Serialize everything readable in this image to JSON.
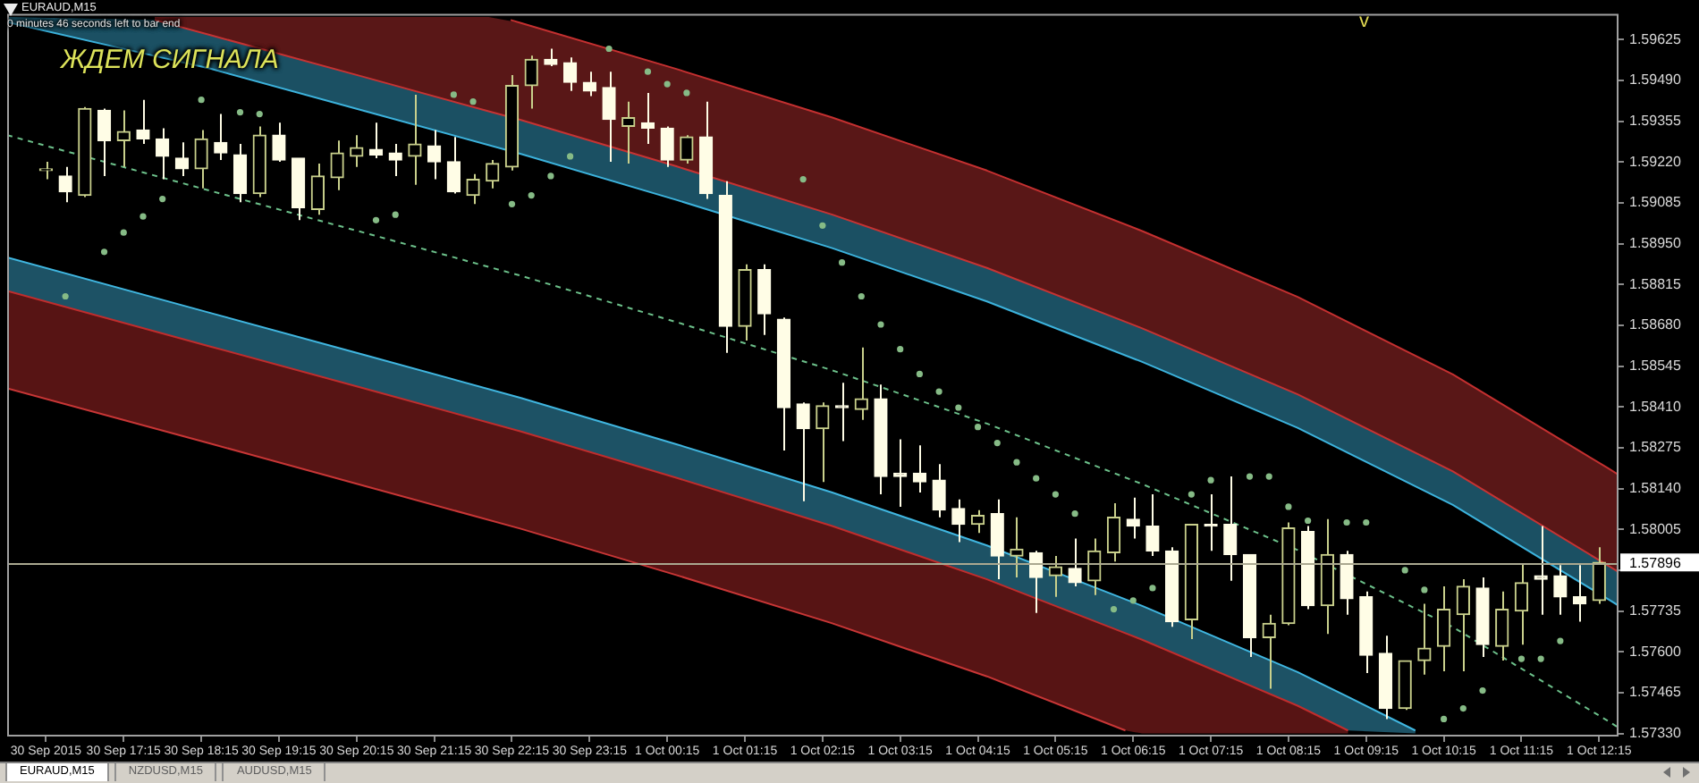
{
  "chart_data": {
    "type": "candlestick",
    "title": "EURAUD,M15",
    "x": [
      "2015-09-30T16:15",
      "2015-09-30T16:30",
      "2015-09-30T16:45",
      "2015-09-30T17:00",
      "2015-09-30T17:15",
      "2015-09-30T17:30",
      "2015-09-30T17:45",
      "2015-09-30T18:00",
      "2015-09-30T18:15",
      "2015-09-30T18:30",
      "2015-09-30T18:45",
      "2015-09-30T19:00",
      "2015-09-30T19:15",
      "2015-09-30T19:30",
      "2015-09-30T19:45",
      "2015-09-30T20:00",
      "2015-09-30T20:15",
      "2015-09-30T20:30",
      "2015-09-30T20:45",
      "2015-09-30T21:00",
      "2015-09-30T21:15",
      "2015-09-30T21:30",
      "2015-09-30T21:45",
      "2015-09-30T22:00",
      "2015-09-30T22:15",
      "2015-09-30T22:30",
      "2015-09-30T22:45",
      "2015-09-30T23:00",
      "2015-09-30T23:15",
      "2015-09-30T23:30",
      "2015-09-30T23:45",
      "2015-10-01T00:00",
      "2015-10-01T00:15",
      "2015-10-01T00:30",
      "2015-10-01T00:45",
      "2015-10-01T01:00",
      "2015-10-01T01:15",
      "2015-10-01T01:30",
      "2015-10-01T01:45",
      "2015-10-01T02:00",
      "2015-10-01T02:15",
      "2015-10-01T02:30",
      "2015-10-01T02:45",
      "2015-10-01T03:00",
      "2015-10-01T03:15",
      "2015-10-01T03:30",
      "2015-10-01T03:45",
      "2015-10-01T04:00",
      "2015-10-01T04:15",
      "2015-10-01T04:30",
      "2015-10-01T04:45",
      "2015-10-01T05:00",
      "2015-10-01T05:15",
      "2015-10-01T05:30",
      "2015-10-01T05:45",
      "2015-10-01T06:00",
      "2015-10-01T06:15",
      "2015-10-01T06:30",
      "2015-10-01T06:45",
      "2015-10-01T07:00",
      "2015-10-01T07:15",
      "2015-10-01T07:30",
      "2015-10-01T07:45",
      "2015-10-01T08:00",
      "2015-10-01T08:15",
      "2015-10-01T08:30",
      "2015-10-01T08:45",
      "2015-10-01T09:00",
      "2015-10-01T09:15",
      "2015-10-01T09:30",
      "2015-10-01T09:45",
      "2015-10-01T10:00",
      "2015-10-01T10:15",
      "2015-10-01T10:30",
      "2015-10-01T10:45",
      "2015-10-01T11:00",
      "2015-10-01T11:15",
      "2015-10-01T11:30",
      "2015-10-01T11:45",
      "2015-10-01T12:00",
      "2015-10-01T12:15"
    ],
    "ohlc": [
      [
        1.59192,
        1.59221,
        1.59163,
        1.59192
      ],
      [
        1.59174,
        1.59204,
        1.59087,
        1.59122
      ],
      [
        1.5911,
        1.59402,
        1.59104,
        1.59397
      ],
      [
        1.59391,
        1.59397,
        1.59174,
        1.59291
      ],
      [
        1.59291,
        1.59391,
        1.59204,
        1.59321
      ],
      [
        1.59326,
        1.59426,
        1.5928,
        1.59297
      ],
      [
        1.59297,
        1.59332,
        1.59163,
        1.59239
      ],
      [
        1.59233,
        1.59285,
        1.59174,
        1.59198
      ],
      [
        1.59198,
        1.59326,
        1.59133,
        1.59297
      ],
      [
        1.59285,
        1.59379,
        1.59227,
        1.5925
      ],
      [
        1.59244,
        1.5928,
        1.59087,
        1.59116
      ],
      [
        1.59116,
        1.59338,
        1.59104,
        1.59309
      ],
      [
        1.59309,
        1.5935,
        1.59221,
        1.59227
      ],
      [
        1.59233,
        1.59233,
        1.59028,
        1.59069
      ],
      [
        1.59063,
        1.59215,
        1.59046,
        1.59174
      ],
      [
        1.59168,
        1.59291,
        1.59127,
        1.5925
      ],
      [
        1.59239,
        1.59309,
        1.59204,
        1.59268
      ],
      [
        1.59262,
        1.5935,
        1.59233,
        1.59244
      ],
      [
        1.5925,
        1.5928,
        1.59174,
        1.59227
      ],
      [
        1.59239,
        1.59443,
        1.59145,
        1.5928
      ],
      [
        1.59274,
        1.59326,
        1.59163,
        1.59221
      ],
      [
        1.59221,
        1.59303,
        1.59116,
        1.59122
      ],
      [
        1.5911,
        1.5918,
        1.59081,
        1.59163
      ],
      [
        1.59157,
        1.59227,
        1.59133,
        1.59215
      ],
      [
        1.59204,
        1.59508,
        1.59192,
        1.59473
      ],
      [
        1.59473,
        1.59572,
        1.59397,
        1.5956
      ],
      [
        1.5956,
        1.59595,
        1.59537,
        1.59543
      ],
      [
        1.59549,
        1.59566,
        1.59455,
        1.59484
      ],
      [
        1.59484,
        1.59519,
        1.59438,
        1.59455
      ],
      [
        1.59467,
        1.59519,
        1.59221,
        1.59361
      ],
      [
        1.59338,
        1.5942,
        1.59215,
        1.59367
      ],
      [
        1.5935,
        1.59449,
        1.5928,
        1.59332
      ],
      [
        1.59332,
        1.59338,
        1.59204,
        1.59227
      ],
      [
        1.59227,
        1.59309,
        1.59215,
        1.59303
      ],
      [
        1.59303,
        1.5942,
        1.59098,
        1.59116
      ],
      [
        1.5911,
        1.59157,
        1.58589,
        1.58677
      ],
      [
        1.58677,
        1.58882,
        1.5863,
        1.58864
      ],
      [
        1.58864,
        1.58882,
        1.58648,
        1.58718
      ],
      [
        1.587,
        1.58706,
        1.58266,
        1.58408
      ],
      [
        1.5842,
        1.58425,
        1.58098,
        1.58338
      ],
      [
        1.58338,
        1.58425,
        1.58162,
        1.58414
      ],
      [
        1.58414,
        1.5849,
        1.58297,
        1.58408
      ],
      [
        1.58402,
        1.58607,
        1.58367,
        1.58437
      ],
      [
        1.58437,
        1.58484,
        1.58121,
        1.5818
      ],
      [
        1.58191,
        1.58303,
        1.5808,
        1.5818
      ],
      [
        1.58191,
        1.58283,
        1.58127,
        1.58162
      ],
      [
        1.58168,
        1.58221,
        1.58045,
        1.58069
      ],
      [
        1.58074,
        1.58104,
        1.57963,
        1.58022
      ],
      [
        1.58022,
        1.58069,
        1.57993,
        1.58051
      ],
      [
        1.58057,
        1.58104,
        1.5784,
        1.57917
      ],
      [
        1.57917,
        1.58045,
        1.57846,
        1.5794
      ],
      [
        1.57928,
        1.57934,
        1.57729,
        1.57846
      ],
      [
        1.57852,
        1.57917,
        1.57782,
        1.57881
      ],
      [
        1.57876,
        1.57975,
        1.57817,
        1.57829
      ],
      [
        1.57835,
        1.57975,
        1.57788,
        1.57934
      ],
      [
        1.57928,
        1.58092,
        1.57899,
        1.58045
      ],
      [
        1.58039,
        1.5811,
        1.57975,
        1.58016
      ],
      [
        1.58016,
        1.58121,
        1.57917,
        1.57934
      ],
      [
        1.57934,
        1.57946,
        1.57683,
        1.577
      ],
      [
        1.57706,
        1.58022,
        1.57642,
        1.58022
      ],
      [
        1.58022,
        1.58121,
        1.57934,
        1.58016
      ],
      [
        1.58022,
        1.5818,
        1.57835,
        1.57922
      ],
      [
        1.57922,
        1.57922,
        1.57583,
        1.57647
      ],
      [
        1.57647,
        1.57723,
        1.57478,
        1.57694
      ],
      [
        1.57694,
        1.58028,
        1.57688,
        1.5801
      ],
      [
        1.57998,
        1.58016,
        1.57741,
        1.57753
      ],
      [
        1.57753,
        1.58039,
        1.57659,
        1.57922
      ],
      [
        1.57922,
        1.57934,
        1.57723,
        1.57776
      ],
      [
        1.57782,
        1.578,
        1.5753,
        1.57589
      ],
      [
        1.57595,
        1.57653,
        1.57378,
        1.57413
      ],
      [
        1.57413,
        1.57571,
        1.57408,
        1.57571
      ],
      [
        1.57571,
        1.57759,
        1.57525,
        1.57612
      ],
      [
        1.57618,
        1.57817,
        1.57536,
        1.57741
      ],
      [
        1.57723,
        1.5784,
        1.57536,
        1.57817
      ],
      [
        1.57811,
        1.57846,
        1.57583,
        1.57624
      ],
      [
        1.57618,
        1.578,
        1.57571,
        1.57741
      ],
      [
        1.57735,
        1.57893,
        1.57624,
        1.57829
      ],
      [
        1.57852,
        1.58016,
        1.57723,
        1.5784
      ],
      [
        1.57852,
        1.57887,
        1.57723,
        1.57782
      ],
      [
        1.57782,
        1.57887,
        1.577,
        1.57759
      ],
      [
        1.5777,
        1.57946,
        1.57759,
        1.57896
      ]
    ],
    "colors": [
      "#c9d08c",
      "#fffde6",
      "#c9d08c",
      "#fffde6",
      "#c9d08c",
      "#fffde6",
      "#fffde6",
      "#fffde6",
      "#c9d08c",
      "#fffde6",
      "#fffde6",
      "#c9d08c",
      "#fffde6",
      "#fffde6",
      "#c9d08c",
      "#c9d08c",
      "#c9d08c",
      "#fffde6",
      "#fffde6",
      "#c9d08c",
      "#fffde6",
      "#fffde6",
      "#c9d08c",
      "#c9d08c",
      "#c9d08c",
      "#c9d08c",
      "#fffde6",
      "#fffde6",
      "#fffde6",
      "#fffde6",
      "#c9d08c",
      "#fffde6",
      "#fffde6",
      "#c9d08c",
      "#fffde6",
      "#fffde6",
      "#c9d08c",
      "#fffde6",
      "#fffde6",
      "#fffde6",
      "#c9d08c",
      "#fffde6",
      "#c9d08c",
      "#fffde6",
      "#fffde6",
      "#fffde6",
      "#fffde6",
      "#fffde6",
      "#c9d08c",
      "#fffde6",
      "#c9d08c",
      "#fffde6",
      "#c9d08c",
      "#fffde6",
      "#c9d08c",
      "#c9d08c",
      "#fffde6",
      "#fffde6",
      "#fffde6",
      "#c9d08c",
      "#fffde6",
      "#fffde6",
      "#fffde6",
      "#c9d08c",
      "#c9d08c",
      "#fffde6",
      "#c9d08c",
      "#fffde6",
      "#fffde6",
      "#fffde6",
      "#c9d08c",
      "#c9d08c",
      "#c9d08c",
      "#c9d08c",
      "#fffde6",
      "#c9d08c",
      "#c9d08c",
      "#fffde6",
      "#fffde6",
      "#fffde6",
      "#c9d08c"
    ],
    "series": [
      {
        "type": "line",
        "color": "#c43030",
        "x": [
          "2015-09-30T22:14",
          "2015-09-30T22:22",
          "2015-10-01T00:22",
          "2015-10-01T02:22",
          "2015-10-01T04:22",
          "2015-10-01T06:22",
          "2015-10-01T08:22",
          "2015-10-01T10:22",
          "2015-10-01T12:22",
          "2015-10-01T12:30"
        ],
        "values": [
          1.5969,
          1.5968,
          1.59528,
          1.59368,
          1.59192,
          1.58992,
          1.58774,
          1.58518,
          1.58207,
          1.58186
        ]
      },
      {
        "type": "line",
        "color": "#c63333",
        "x": [
          "2015-09-30T17:39",
          "2015-09-30T18:22",
          "2015-09-30T20:22",
          "2015-09-30T21:57",
          "2015-09-30T22:22",
          "2015-10-01T00:22",
          "2015-10-01T02:22",
          "2015-10-01T04:22",
          "2015-10-01T06:22",
          "2015-10-01T08:22",
          "2015-10-01T10:22",
          "2015-10-01T12:22",
          "2015-10-01T12:30"
        ],
        "values": [
          1.5969,
          1.5964,
          1.595,
          1.59388,
          1.59359,
          1.59206,
          1.59047,
          1.5887,
          1.5867,
          1.58452,
          1.58197,
          1.57885,
          1.57864
        ],
        "upper": [
          1.597,
          1.597,
          1.597,
          1.597,
          1.5968,
          1.59528,
          1.59368,
          1.59192,
          1.58992,
          1.58774,
          1.58518,
          1.58207,
          1.58186
        ],
        "lower": [
          1.5969,
          1.5964,
          1.595,
          1.59388,
          1.59359,
          1.59206,
          1.59047,
          1.5887,
          1.5867,
          1.58452,
          1.58197,
          1.57885,
          1.57864
        ]
      },
      {
        "type": "line",
        "color": "#3cb2dc",
        "x": [
          "2015-09-30T15:45",
          "2015-09-30T17:39",
          "2015-09-30T18:22",
          "2015-09-30T20:22",
          "2015-09-30T22:22",
          "2015-10-01T00:22",
          "2015-10-01T02:22",
          "2015-10-01T04:22",
          "2015-10-01T06:22",
          "2015-10-01T08:22",
          "2015-10-01T10:22",
          "2015-10-01T12:22",
          "2015-10-01T12:30"
        ],
        "values": [
          1.59683,
          1.59571,
          1.59529,
          1.59388,
          1.59247,
          1.59095,
          1.58936,
          1.58759,
          1.58559,
          1.58341,
          1.58086,
          1.57774,
          1.57753
        ],
        "upper": [
          1.597,
          1.5969,
          1.5964,
          1.595,
          1.59359,
          1.59206,
          1.59047,
          1.5887,
          1.5867,
          1.58452,
          1.58197,
          1.57885,
          1.57864
        ],
        "lower": [
          1.59683,
          1.59571,
          1.59529,
          1.59388,
          1.59247,
          1.59095,
          1.58936,
          1.58759,
          1.58559,
          1.58341,
          1.58086,
          1.57774,
          1.57753
        ]
      },
      {
        "type": "line",
        "color": "#6cc08a",
        "line_style": "dashed",
        "x": [
          "2015-09-30T15:45",
          "2015-09-30T18:22",
          "2015-09-30T20:22",
          "2015-09-30T22:22",
          "2015-10-01T00:22",
          "2015-10-01T02:22",
          "2015-10-01T04:22",
          "2015-10-01T06:22",
          "2015-10-01T08:22",
          "2015-10-01T10:22",
          "2015-10-01T12:22",
          "2015-10-01T12:30"
        ],
        "values": [
          1.59309,
          1.59125,
          1.58985,
          1.58844,
          1.58691,
          1.58532,
          1.58355,
          1.58155,
          1.57937,
          1.57682,
          1.57371,
          1.57349
        ]
      },
      {
        "type": "line",
        "color": "#40b6e0",
        "x": [
          "2015-09-30T15:45",
          "2015-09-30T18:22",
          "2015-09-30T20:22",
          "2015-09-30T22:22",
          "2015-10-01T00:22",
          "2015-10-01T02:22",
          "2015-10-01T04:22",
          "2015-10-01T06:22",
          "2015-10-01T08:22",
          "2015-10-01T09:01",
          "2015-10-01T09:53"
        ],
        "values": [
          1.58905,
          1.58721,
          1.58581,
          1.5844,
          1.58287,
          1.58128,
          1.57952,
          1.57752,
          1.57533,
          1.57451,
          1.5734
        ],
        "upper": [
          1.58905,
          1.58721,
          1.58581,
          1.5844,
          1.58287,
          1.58128,
          1.57952,
          1.57752,
          1.57533,
          1.57451,
          1.5734
        ],
        "lower": [
          1.58794,
          1.5861,
          1.5847,
          1.58329,
          1.58176,
          1.58017,
          1.5784,
          1.5764,
          1.57422,
          1.5734,
          1.5733
        ]
      },
      {
        "type": "line",
        "color": "#c02d2d",
        "x": [
          "2015-09-30T15:45",
          "2015-09-30T18:22",
          "2015-09-30T20:22",
          "2015-09-30T22:22",
          "2015-10-01T00:22",
          "2015-10-01T02:22",
          "2015-10-01T04:22",
          "2015-10-01T06:09",
          "2015-10-01T06:22",
          "2015-10-01T08:22",
          "2015-10-01T09:01"
        ],
        "values": [
          1.58794,
          1.5861,
          1.5847,
          1.58329,
          1.58176,
          1.58017,
          1.5784,
          1.57662,
          1.5764,
          1.57422,
          1.5734
        ],
        "upper": [
          1.58794,
          1.5861,
          1.5847,
          1.58329,
          1.58176,
          1.58017,
          1.5784,
          1.57662,
          1.5764,
          1.57422,
          1.5734
        ],
        "lower": [
          1.58472,
          1.58289,
          1.58148,
          1.58007,
          1.57854,
          1.57695,
          1.57519,
          1.5734,
          1.5733,
          1.5733,
          1.5733
        ]
      },
      {
        "type": "line",
        "color": "#c83636",
        "x": [
          "2015-09-30T15:45",
          "2015-09-30T18:22",
          "2015-09-30T20:22",
          "2015-09-30T22:22",
          "2015-10-01T00:22",
          "2015-10-01T02:22",
          "2015-10-01T04:22",
          "2015-10-01T06:09"
        ],
        "values": [
          1.58472,
          1.58289,
          1.58148,
          1.58007,
          1.57854,
          1.57695,
          1.57519,
          1.5734
        ]
      },
      {
        "type": "scatter",
        "color": "#86bb86",
        "marker": "circle",
        "x": [
          "2015-09-30T16:30",
          "2015-09-30T17:00",
          "2015-09-30T17:15",
          "2015-09-30T17:30",
          "2015-09-30T17:45",
          "2015-09-30T18:15",
          "2015-09-30T18:45",
          "2015-09-30T19:00",
          "2015-09-30T20:30",
          "2015-09-30T20:45",
          "2015-09-30T21:30",
          "2015-09-30T21:45",
          "2015-09-30T22:15",
          "2015-09-30T22:30",
          "2015-09-30T22:45",
          "2015-09-30T23:00",
          "2015-09-30T23:30",
          "2015-10-01T00:00",
          "2015-10-01T00:15",
          "2015-10-01T00:30",
          "2015-10-01T02:00",
          "2015-10-01T02:15",
          "2015-10-01T02:30",
          "2015-10-01T02:45",
          "2015-10-01T03:00",
          "2015-10-01T03:15",
          "2015-10-01T03:30",
          "2015-10-01T03:45",
          "2015-10-01T04:00",
          "2015-10-01T04:15",
          "2015-10-01T04:30",
          "2015-10-01T04:45",
          "2015-10-01T05:00",
          "2015-10-01T05:15",
          "2015-10-01T05:30",
          "2015-10-01T06:00",
          "2015-10-01T06:15",
          "2015-10-01T06:30",
          "2015-10-01T07:00",
          "2015-10-01T07:15",
          "2015-10-01T07:45",
          "2015-10-01T08:00",
          "2015-10-01T08:15",
          "2015-10-01T08:30",
          "2015-10-01T09:00",
          "2015-10-01T09:15",
          "2015-10-01T09:45",
          "2015-10-01T10:00",
          "2015-10-01T10:15",
          "2015-10-01T10:30",
          "2015-10-01T10:45",
          "2015-10-01T11:15",
          "2015-10-01T11:30",
          "2015-10-01T11:45"
        ],
        "values": [
          1.58776,
          1.58923,
          1.58987,
          1.5904,
          1.59098,
          1.59426,
          1.59385,
          1.59379,
          1.59028,
          1.59046,
          1.59443,
          1.5942,
          1.59081,
          1.5911,
          1.59174,
          1.59239,
          1.59595,
          1.59519,
          1.59478,
          1.59449,
          1.59163,
          1.5901,
          1.58888,
          1.58776,
          1.58683,
          1.58601,
          1.58519,
          1.58461,
          1.58408,
          1.58344,
          1.58291,
          1.58227,
          1.58174,
          1.58121,
          1.58057,
          1.57741,
          1.5777,
          1.57811,
          1.58121,
          1.58168,
          1.5818,
          1.5818,
          1.5808,
          1.58034,
          1.58028,
          1.58028,
          1.5787,
          1.57805,
          1.57378,
          1.57413,
          1.57472,
          1.57577,
          1.57577,
          1.57636
        ]
      }
    ],
    "xlim": [
      "2015-09-30T15:45",
      "2015-10-01T12:30"
    ],
    "xticks": [
      {
        "value": "2015-09-30T16:15",
        "label": "30 Sep 2015"
      },
      {
        "value": "2015-09-30T17:15",
        "label": "30 Sep 17:15"
      },
      {
        "value": "2015-09-30T18:15",
        "label": "30 Sep 18:15"
      },
      {
        "value": "2015-09-30T19:15",
        "label": "30 Sep 19:15"
      },
      {
        "value": "2015-09-30T20:15",
        "label": "30 Sep 20:15"
      },
      {
        "value": "2015-09-30T21:15",
        "label": "30 Sep 21:15"
      },
      {
        "value": "2015-09-30T22:15",
        "label": "30 Sep 22:15"
      },
      {
        "value": "2015-09-30T23:15",
        "label": "30 Sep 23:15"
      },
      {
        "value": "2015-10-01T00:15",
        "label": "1 Oct 00:15"
      },
      {
        "value": "2015-10-01T01:15",
        "label": "1 Oct 01:15"
      },
      {
        "value": "2015-10-01T02:15",
        "label": "1 Oct 02:15"
      },
      {
        "value": "2015-10-01T03:15",
        "label": "1 Oct 03:15"
      },
      {
        "value": "2015-10-01T04:15",
        "label": "1 Oct 04:15"
      },
      {
        "value": "2015-10-01T05:15",
        "label": "1 Oct 05:15"
      },
      {
        "value": "2015-10-01T06:15",
        "label": "1 Oct 06:15"
      },
      {
        "value": "2015-10-01T07:15",
        "label": "1 Oct 07:15"
      },
      {
        "value": "2015-10-01T08:15",
        "label": "1 Oct 08:15"
      },
      {
        "value": "2015-10-01T09:15",
        "label": "1 Oct 09:15"
      },
      {
        "value": "2015-10-01T10:15",
        "label": "1 Oct 10:15"
      },
      {
        "value": "2015-10-01T11:15",
        "label": "1 Oct 11:15"
      },
      {
        "value": "2015-10-01T12:15",
        "label": "1 Oct 12:15"
      }
    ],
    "ylim": [
      1.5732,
      1.5971
    ],
    "yticks": [
      {
        "value": 1.5733,
        "label": "1.57330"
      },
      1.57465,
      {
        "value": 1.576,
        "label": "1.57600"
      },
      1.57735,
      {
        "value": 1.5787,
        "label": null
      },
      1.58005,
      {
        "value": 1.5814,
        "label": "1.58140"
      },
      1.58275,
      {
        "value": 1.5841,
        "label": "1.58410"
      },
      1.58545,
      {
        "value": 1.5868,
        "label": "1.58680"
      },
      1.58815,
      {
        "value": 1.5895,
        "label": "1.58950"
      },
      1.59085,
      {
        "value": 1.5922,
        "label": "1.59220"
      },
      1.59355,
      {
        "value": 1.5949,
        "label": "1.59490"
      },
      1.59625
    ],
    "ref_lines": [
      {
        "axis": "y",
        "value": 1.57896,
        "label": "1.57896",
        "color": "#aaa890"
      }
    ],
    "annotations": [
      "0 minutes 46 seconds left to bar end",
      "ЖДЕМ СИГНАЛА",
      "v",
      "EURAUD,M15",
      "NZDUSD,M15",
      "AUDUSD,M15"
    ]
  }
}
